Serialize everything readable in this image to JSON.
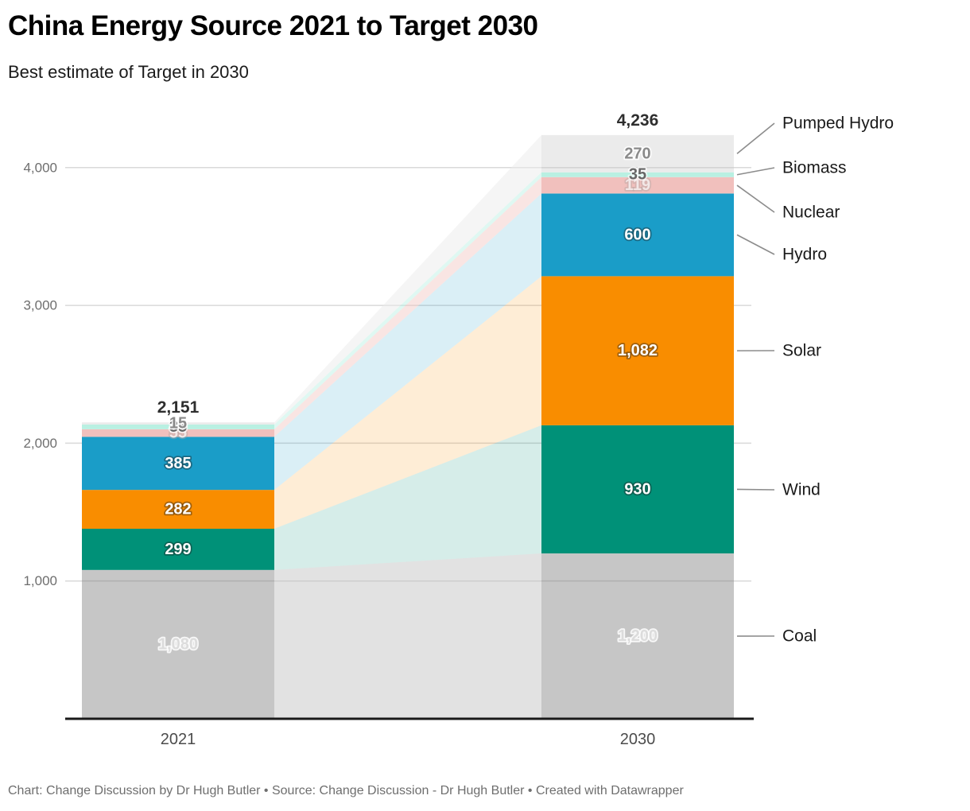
{
  "header": {
    "title": "China Energy Source 2021 to Target 2030",
    "subtitle": "Best estimate of Target in 2030"
  },
  "footer": {
    "credit": "Chart: Change Discussion by Dr Hugh Butler • Source: Change Discussion - Dr Hugh Butler • Created with Datawrapper"
  },
  "colors": {
    "grid": "#d9d9d9",
    "grid_overlay": "rgba(0,0,0,0.10)",
    "baseline": "#1a1a1a",
    "axis_tick_text": "#6e6e6e",
    "axis_category_text": "#4c4c4c",
    "legend_text": "#1a1a1a",
    "connector": "#8c8c8c",
    "total_text": "#2e2e2e"
  },
  "chart_data": {
    "type": "stacked-column-slope",
    "title": "China Energy Source 2021 to Target 2030",
    "subtitle": "Best estimate of Target in 2030",
    "categories": [
      "2021",
      "2030"
    ],
    "ylim": [
      0,
      4236
    ],
    "grid": true,
    "legend_position": "right",
    "y_axis": {
      "ticks": [
        {
          "value": 1000,
          "label": "1,000"
        },
        {
          "value": 2000,
          "label": "2,000"
        },
        {
          "value": 3000,
          "label": "3,000"
        },
        {
          "value": 4000,
          "label": "4,000"
        }
      ]
    },
    "series": [
      {
        "name": "Coal",
        "color": "#c6c6c6",
        "values": [
          1080,
          1200
        ],
        "labels": [
          "1,080",
          "1,200"
        ],
        "band_opacity": 0.5,
        "label_style": "ghost",
        "grid_over": true
      },
      {
        "name": "Wind",
        "color": "#009178",
        "values": [
          299,
          930
        ],
        "labels": [
          "299",
          "930"
        ],
        "band_opacity": 0.16,
        "label_style": "light",
        "grid_over": false
      },
      {
        "name": "Solar",
        "color": "#f98d00",
        "values": [
          282,
          1082
        ],
        "labels": [
          "282",
          "1,082"
        ],
        "band_opacity": 0.16,
        "label_style": "light",
        "grid_over": false
      },
      {
        "name": "Hydro",
        "color": "#1a9dc8",
        "values": [
          385,
          600
        ],
        "labels": [
          "385",
          "600"
        ],
        "band_opacity": 0.16,
        "label_style": "light",
        "grid_over": false
      },
      {
        "name": "Nuclear",
        "color": "#f1c0bd",
        "values": [
          55,
          119
        ],
        "labels": [
          "55",
          "119"
        ],
        "band_opacity": 0.42,
        "label_style": "pale",
        "grid_over": false
      },
      {
        "name": "Biomass",
        "color": "#b9f0e2",
        "values": [
          35,
          35
        ],
        "labels": [
          "35",
          "35"
        ],
        "band_opacity": 0.45,
        "label_style": "dark",
        "grid_over": false
      },
      {
        "name": "Pumped Hydro",
        "color": "#ebebeb",
        "values": [
          15,
          270
        ],
        "labels": [
          "15",
          "270"
        ],
        "band_opacity": 0.5,
        "label_style": "muted",
        "grid_over": true
      }
    ],
    "totals": [
      2151,
      4236
    ],
    "totals_labels": [
      "2,151",
      "4,236"
    ],
    "legend": [
      {
        "label": "Pumped Hydro",
        "y": 155
      },
      {
        "label": "Biomass",
        "y": 211
      },
      {
        "label": "Nuclear",
        "y": 267
      },
      {
        "label": "Hydro",
        "y": 320
      },
      {
        "label": "Solar",
        "y": 441
      },
      {
        "label": "Wind",
        "y": 616
      },
      {
        "label": "Coal",
        "y": 800
      }
    ]
  }
}
